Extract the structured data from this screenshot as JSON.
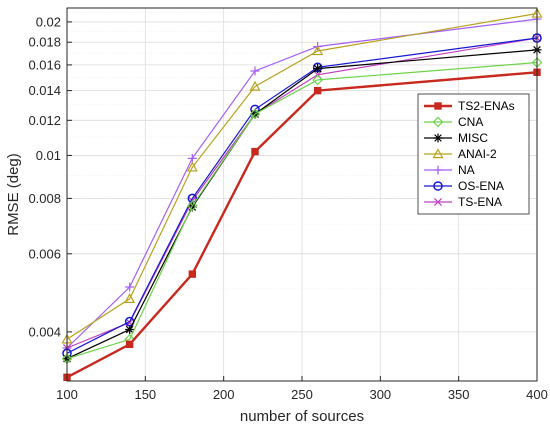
{
  "chart_data": {
    "type": "line",
    "xlabel": "number of sources",
    "ylabel": "RMSE (deg)",
    "xlim": [
      100,
      400
    ],
    "ylim": [
      0.0031,
      0.0215
    ],
    "yscale": "log",
    "grid": true,
    "xticks": [
      100,
      150,
      200,
      250,
      300,
      350,
      400
    ],
    "yticks": [
      0.004,
      0.006,
      0.008,
      0.01,
      0.012,
      0.014,
      0.016,
      0.018,
      0.02
    ],
    "x": [
      100,
      140,
      180,
      220,
      260,
      400
    ],
    "legend_position": "right",
    "series": [
      {
        "name": "NA",
        "color": "#a45ef5",
        "marker": "plus",
        "values": [
          0.00368,
          0.00505,
          0.00985,
          0.0155,
          0.0176,
          0.0203
        ]
      },
      {
        "name": "ANAI-2",
        "color": "#b8a21e",
        "marker": "triangle",
        "values": [
          0.00385,
          0.00475,
          0.0094,
          0.0143,
          0.0172,
          0.0209
        ]
      },
      {
        "name": "TS-ENA",
        "color": "#c040c0",
        "marker": "x",
        "values": [
          0.00368,
          0.0042,
          0.0079,
          0.0124,
          0.0152,
          0.0184
        ]
      },
      {
        "name": "OS-ENA",
        "color": "#1717d0",
        "marker": "circle",
        "values": [
          0.00358,
          0.00422,
          0.008,
          0.0127,
          0.0158,
          0.0184
        ]
      },
      {
        "name": "MISC",
        "color": "#000000",
        "marker": "star",
        "values": [
          0.00348,
          0.00405,
          0.00765,
          0.0124,
          0.0157,
          0.0173
        ]
      },
      {
        "name": "CNA",
        "color": "#6ed24a",
        "marker": "diamond",
        "values": [
          0.00348,
          0.00385,
          0.0077,
          0.0124,
          0.0148,
          0.0162
        ]
      },
      {
        "name": "TS2-ENAs",
        "color": "#c7291e",
        "marker": "square",
        "values": [
          0.00316,
          0.00375,
          0.0054,
          0.0102,
          0.014,
          0.0154
        ]
      }
    ],
    "legend_order": [
      "TS2-ENAs",
      "CNA",
      "MISC",
      "ANAI-2",
      "NA",
      "OS-ENA",
      "TS-ENA"
    ]
  }
}
